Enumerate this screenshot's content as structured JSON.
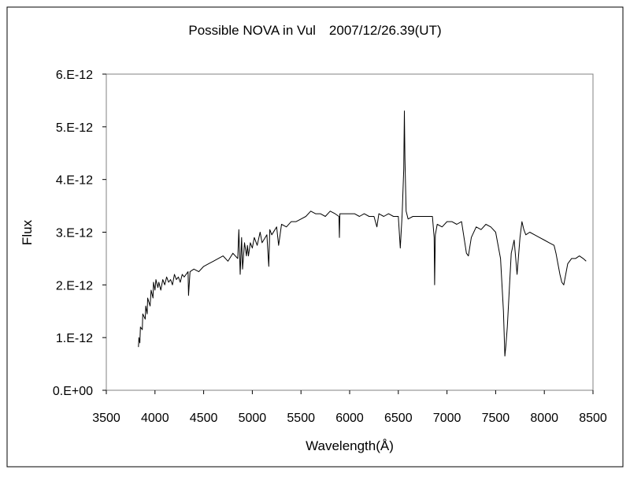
{
  "chart_data": {
    "type": "line",
    "title": "Possible NOVA in Vul　2007/12/26.39(UT)",
    "xlabel": "Wavelength(Å)",
    "ylabel": "Flux",
    "xlim": [
      3500,
      8500
    ],
    "ylim": [
      0,
      6e-12
    ],
    "grid": false,
    "legend": "none",
    "line_color": "#000000",
    "x_ticks": [
      3500,
      4000,
      4500,
      5000,
      5500,
      6000,
      6500,
      7000,
      7500,
      8000,
      8500
    ],
    "x_tick_labels": [
      "3500",
      "4000",
      "4500",
      "5000",
      "5500",
      "6000",
      "6500",
      "7000",
      "7500",
      "8000",
      "8500"
    ],
    "y_ticks": [
      0,
      1e-12,
      2e-12,
      3e-12,
      4e-12,
      5e-12,
      6e-12
    ],
    "y_tick_labels": [
      "0.E+00",
      "1.E-12",
      "2.E-12",
      "3.E-12",
      "4.E-12",
      "5.E-12",
      "6.E-12"
    ],
    "series": [
      {
        "x": [
          3830,
          3835,
          3845,
          3850,
          3870,
          3875,
          3900,
          3905,
          3920,
          3925,
          3950,
          3960,
          3980,
          3985,
          4000,
          4010,
          4030,
          4040,
          4060,
          4080,
          4100,
          4120,
          4140,
          4160,
          4180,
          4200,
          4220,
          4240,
          4260,
          4280,
          4300,
          4340,
          4345,
          4360,
          4400,
          4450,
          4500,
          4550,
          4600,
          4650,
          4700,
          4750,
          4800,
          4850,
          4862,
          4875,
          4890,
          4900,
          4920,
          4940,
          4950,
          4960,
          4980,
          5000,
          5020,
          5050,
          5080,
          5100,
          5150,
          5169,
          5180,
          5200,
          5250,
          5270,
          5300,
          5350,
          5400,
          5450,
          5500,
          5550,
          5600,
          5650,
          5700,
          5750,
          5800,
          5850,
          5890,
          5895,
          5900,
          5950,
          6000,
          6050,
          6100,
          6150,
          6200,
          6250,
          6280,
          6300,
          6350,
          6400,
          6450,
          6500,
          6520,
          6540,
          6556,
          6562,
          6568,
          6580,
          6600,
          6650,
          6700,
          6750,
          6800,
          6850,
          6868,
          6873,
          6880,
          6900,
          6950,
          7000,
          7050,
          7100,
          7150,
          7200,
          7220,
          7250,
          7300,
          7350,
          7400,
          7450,
          7500,
          7550,
          7580,
          7595,
          7605,
          7620,
          7640,
          7660,
          7690,
          7720,
          7750,
          7770,
          7790,
          7810,
          7850,
          7900,
          7950,
          8000,
          8050,
          8100,
          8120,
          8140,
          8160,
          8180,
          8200,
          8220,
          8240,
          8280,
          8320,
          8360,
          8400,
          8430
        ],
        "y": [
          8.2e-13,
          1e-12,
          9e-13,
          1.2e-12,
          1.15e-12,
          1.45e-12,
          1.35e-12,
          1.6e-12,
          1.45e-12,
          1.75e-12,
          1.6e-12,
          1.9e-12,
          1.75e-12,
          2.05e-12,
          1.9e-12,
          2.1e-12,
          1.95e-12,
          2.05e-12,
          1.9e-12,
          2.1e-12,
          2e-12,
          2.15e-12,
          2.05e-12,
          2.1e-12,
          2e-12,
          2.2e-12,
          2.1e-12,
          2.15e-12,
          2.05e-12,
          2.2e-12,
          2.15e-12,
          2.25e-12,
          1.8e-12,
          2.25e-12,
          2.3e-12,
          2.25e-12,
          2.35e-12,
          2.4e-12,
          2.45e-12,
          2.5e-12,
          2.55e-12,
          2.45e-12,
          2.6e-12,
          2.5e-12,
          3.05e-12,
          2.2e-12,
          2.9e-12,
          2.3e-12,
          2.8e-12,
          2.55e-12,
          2.75e-12,
          2.55e-12,
          2.8e-12,
          2.7e-12,
          2.9e-12,
          2.75e-12,
          3e-12,
          2.8e-12,
          2.95e-12,
          2.35e-12,
          3.05e-12,
          2.95e-12,
          3.1e-12,
          2.75e-12,
          3.15e-12,
          3.1e-12,
          3.2e-12,
          3.2e-12,
          3.25e-12,
          3.3e-12,
          3.4e-12,
          3.35e-12,
          3.35e-12,
          3.3e-12,
          3.4e-12,
          3.35e-12,
          3.3e-12,
          2.9e-12,
          3.35e-12,
          3.35e-12,
          3.35e-12,
          3.35e-12,
          3.3e-12,
          3.35e-12,
          3.3e-12,
          3.3e-12,
          3.1e-12,
          3.35e-12,
          3.3e-12,
          3.35e-12,
          3.3e-12,
          3.3e-12,
          2.7e-12,
          3.35e-12,
          4.2e-12,
          5.3e-12,
          4.4e-12,
          3.4e-12,
          3.25e-12,
          3.3e-12,
          3.3e-12,
          3.3e-12,
          3.3e-12,
          3.3e-12,
          2.9e-12,
          2e-12,
          2.95e-12,
          3.15e-12,
          3.1e-12,
          3.2e-12,
          3.2e-12,
          3.15e-12,
          3.2e-12,
          2.6e-12,
          2.55e-12,
          2.9e-12,
          3.1e-12,
          3.05e-12,
          3.15e-12,
          3.1e-12,
          3e-12,
          2.5e-12,
          1.5e-12,
          6.5e-13,
          8.5e-13,
          1.2e-12,
          1.9e-12,
          2.6e-12,
          2.85e-12,
          2.2e-12,
          2.9e-12,
          3.2e-12,
          3.05e-12,
          2.95e-12,
          3e-12,
          2.95e-12,
          2.9e-12,
          2.85e-12,
          2.8e-12,
          2.75e-12,
          2.6e-12,
          2.4e-12,
          2.2e-12,
          2.05e-12,
          2e-12,
          2.2e-12,
          2.4e-12,
          2.5e-12,
          2.5e-12,
          2.55e-12,
          2.5e-12,
          2.45e-12
        ]
      }
    ]
  }
}
